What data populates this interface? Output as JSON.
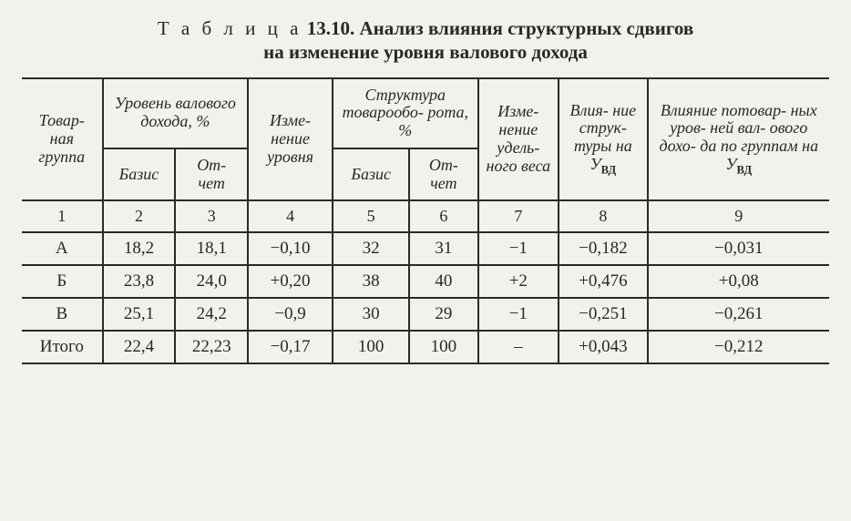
{
  "title": {
    "prefix": "Т а б л и ц а",
    "number": "13.10.",
    "line1": "Анализ влияния структурных сдвигов",
    "line2": "на изменение уровня валового дохода"
  },
  "table": {
    "head": {
      "col1": "Товар-\nная группа",
      "grp2_top": "Уровень валового дохода, %",
      "col2": "Базис",
      "col3": "От-\nчет",
      "col4": "Изме-\nнение уровня",
      "grp5_top": "Структура товарообо-\nрота, %",
      "col5": "Базис",
      "col6": "От-\nчет",
      "col7": "Изме-\nнение удель-\nного веса",
      "col8_pre": "Влия-\nние струк-\nтуры на ",
      "col9_pre": "Влияние потовар-\nных уров-\nней вал-\nового дохо-\nда по группам на "
    },
    "uvd_main": "У",
    "uvd_sub": "ВД",
    "numrow": [
      "1",
      "2",
      "3",
      "4",
      "5",
      "6",
      "7",
      "8",
      "9"
    ],
    "rows": [
      {
        "label": "А",
        "c2": "18,2",
        "c3": "18,1",
        "c4": "−0,10",
        "c5": "32",
        "c6": "31",
        "c7": "−1",
        "c8": "−0,182",
        "c9": "−0,031"
      },
      {
        "label": "Б",
        "c2": "23,8",
        "c3": "24,0",
        "c4": "+0,20",
        "c5": "38",
        "c6": "40",
        "c7": "+2",
        "c8": "+0,476",
        "c9": "+0,08"
      },
      {
        "label": "В",
        "c2": "25,1",
        "c3": "24,2",
        "c4": "−0,9",
        "c5": "30",
        "c6": "29",
        "c7": "−1",
        "c8": "−0,251",
        "c9": "−0,261"
      }
    ],
    "total": {
      "label": "Итого",
      "c2": "22,4",
      "c3": "22,23",
      "c4": "−0,17",
      "c5": "100",
      "c6": "100",
      "c7": "–",
      "c8": "+0,043",
      "c9": "−0,212"
    }
  }
}
